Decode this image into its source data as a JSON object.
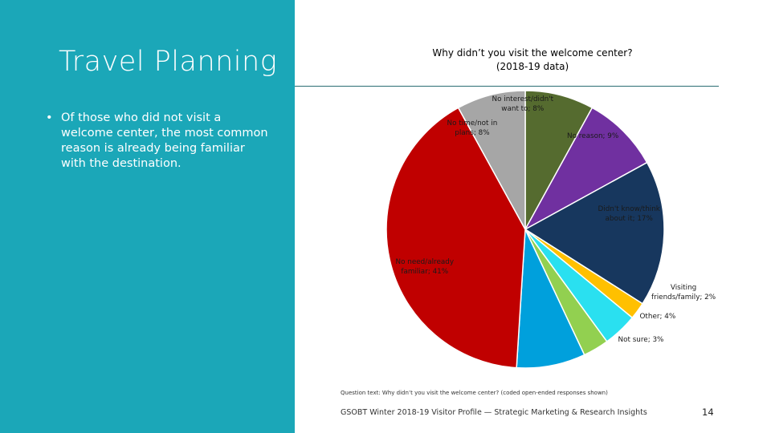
{
  "slide": {
    "title": "Travel Planning",
    "bullet_mark": "•",
    "bullet_text": "Of those who did not visit a welcome center, the most common reason is already being familiar with the destination.",
    "panel_color": "#1BA7B8"
  },
  "chart_data": {
    "type": "pie",
    "title": "Why didn’t you visit the welcome center?",
    "subtitle": "(2018-19 data)",
    "start": "12 o'clock, clockwise",
    "slices": [
      {
        "label": "No interest/didn't want to; 8%",
        "lines": [
          "No interest/didn't",
          "want to; 8%"
        ],
        "value": 8,
        "color": "#556B2F"
      },
      {
        "label": "No reason; 9%",
        "lines": [
          "No reason; 9%"
        ],
        "value": 9,
        "color": "#7030A0"
      },
      {
        "label": "Didn't know/think about it; 17%",
        "lines": [
          "Didn't know/think",
          "about it; 17%"
        ],
        "value": 17,
        "color": "#17375E"
      },
      {
        "label": "Visiting friends/family; 2%",
        "lines": [
          "Visiting",
          "friends/family; 2%"
        ],
        "value": 2,
        "color": "#FFC000"
      },
      {
        "label": "Other; 4%",
        "lines": [
          "Other; 4%"
        ],
        "value": 4,
        "color": "#2AE0F0"
      },
      {
        "label": "Not sure; 3%",
        "lines": [
          "Not sure; 3%"
        ],
        "value": 3,
        "color": "#92D050"
      },
      {
        "label": "",
        "lines": [],
        "value": 8,
        "color": "#00A0DC"
      },
      {
        "label": "No need/already familiar; 41%",
        "lines": [
          "No need/already",
          "familiar; 41%"
        ],
        "value": 41,
        "color": "#C00000"
      },
      {
        "label": "No time/not in plans; 8%",
        "lines": [
          "No time/not in",
          "plans; 8%"
        ],
        "value": 8,
        "color": "#A6A6A6"
      }
    ]
  },
  "footer": {
    "question_text": "Question text: Why didn’t you visit the welcome center? (coded open-ended responses shown)",
    "source": "GSOBT Winter 2018-19 Visitor Profile — Strategic Marketing & Research Insights",
    "page_number": "14"
  }
}
